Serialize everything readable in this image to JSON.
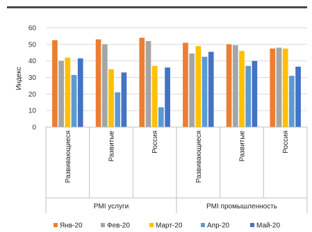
{
  "chart_data": {
    "type": "bar",
    "ylabel": "Индекс",
    "ylim": [
      0,
      60
    ],
    "yticks": [
      0,
      10,
      20,
      30,
      40,
      50,
      60
    ],
    "groups": [
      {
        "label": "PMI услуги",
        "categories": [
          "Развивающиеся",
          "Развитые",
          "Россия"
        ]
      },
      {
        "label": "PMI промышленность",
        "categories": [
          "Развивающиеся",
          "Развитые",
          "Россия"
        ]
      }
    ],
    "series": [
      {
        "name": "Янв-20",
        "color": "#ED7D31",
        "values": [
          52.5,
          53,
          54,
          51,
          50,
          47.5
        ]
      },
      {
        "name": "Фев-20",
        "color": "#A5A5A5",
        "values": [
          40,
          50,
          52,
          44.5,
          49.5,
          48
        ]
      },
      {
        "name": "Март-20",
        "color": "#FFC000",
        "values": [
          42,
          35,
          37,
          49,
          46,
          47.5
        ]
      },
      {
        "name": "Апр-20",
        "color": "#5B9BD5",
        "values": [
          31.5,
          21,
          12,
          42.5,
          37,
          31
        ]
      },
      {
        "name": "Май-20",
        "color": "#4472C4",
        "values": [
          41.5,
          33,
          36,
          45.5,
          40,
          36.5
        ]
      }
    ]
  }
}
